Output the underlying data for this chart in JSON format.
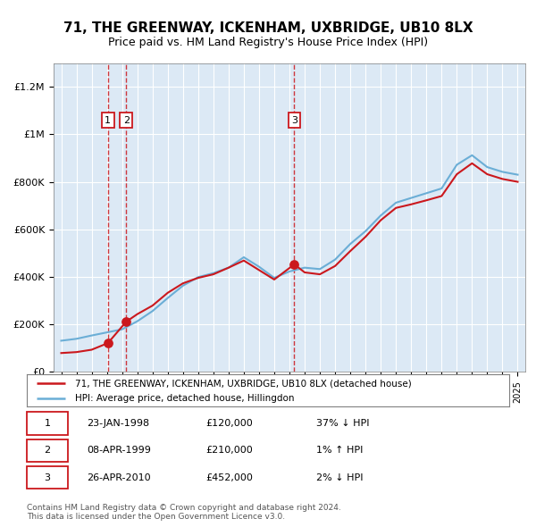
{
  "title": "71, THE GREENWAY, ICKENHAM, UXBRIDGE, UB10 8LX",
  "subtitle": "Price paid vs. HM Land Registry's House Price Index (HPI)",
  "sales": [
    {
      "date_num": 1998.07,
      "price": 120000,
      "label": "1"
    },
    {
      "date_num": 1999.27,
      "price": 210000,
      "label": "2"
    },
    {
      "date_num": 2010.32,
      "price": 452000,
      "label": "3"
    }
  ],
  "sale_dates": [
    "23-JAN-1998",
    "08-APR-1999",
    "26-APR-2010"
  ],
  "sale_prices": [
    "£120,000",
    "£210,000",
    "£452,000"
  ],
  "sale_hpi": [
    "37% ↓ HPI",
    "1% ↑ HPI",
    "2% ↓ HPI"
  ],
  "hpi_line_color": "#6baed6",
  "price_line_color": "#cb181d",
  "background_color": "#dce9f5",
  "ylim": [
    0,
    1300000
  ],
  "xlim": [
    1994.5,
    2025.5
  ],
  "legend_label_red": "71, THE GREENWAY, ICKENHAM, UXBRIDGE, UB10 8LX (detached house)",
  "legend_label_blue": "HPI: Average price, detached house, Hillingdon",
  "footer": "Contains HM Land Registry data © Crown copyright and database right 2024.\nThis data is licensed under the Open Government Licence v3.0.",
  "hpi_data_x": [
    1995,
    1996,
    1997,
    1998,
    1999,
    2000,
    2001,
    2002,
    2003,
    2004,
    2005,
    2006,
    2007,
    2008,
    2009,
    2010,
    2011,
    2012,
    2013,
    2014,
    2015,
    2016,
    2017,
    2018,
    2019,
    2020,
    2021,
    2022,
    2023,
    2024,
    2025
  ],
  "hpi_data_y": [
    130000,
    138000,
    152000,
    165000,
    178000,
    212000,
    255000,
    310000,
    362000,
    398000,
    415000,
    438000,
    482000,
    442000,
    395000,
    422000,
    438000,
    432000,
    472000,
    538000,
    592000,
    658000,
    712000,
    732000,
    752000,
    772000,
    872000,
    912000,
    862000,
    842000,
    830000
  ],
  "price_line_x": [
    1995,
    1996,
    1997,
    1998.07,
    1999.27,
    2000,
    2001,
    2002,
    2003,
    2004,
    2005,
    2006,
    2007,
    2008,
    2009,
    2010.32,
    2011,
    2012,
    2013,
    2014,
    2015,
    2016,
    2017,
    2018,
    2019,
    2020,
    2021,
    2022,
    2023,
    2024,
    2025
  ],
  "price_line_y": [
    78000,
    82000,
    92000,
    120000,
    210000,
    242000,
    278000,
    332000,
    372000,
    395000,
    410000,
    438000,
    468000,
    428000,
    388000,
    452000,
    418000,
    410000,
    445000,
    508000,
    568000,
    638000,
    690000,
    705000,
    722000,
    740000,
    832000,
    878000,
    832000,
    812000,
    800000
  ]
}
